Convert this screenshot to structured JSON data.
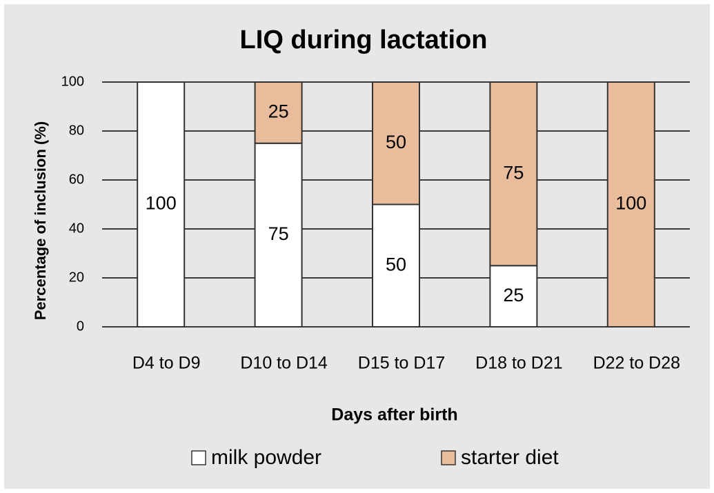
{
  "chart_data": {
    "type": "stacked_bar",
    "title": "LIQ during lactation",
    "x_label": "Days after birth",
    "y_label": "Percentage of inclusion (%)",
    "categories": [
      "D4 to D9",
      "D10 to D14",
      "D15 to D17",
      "D18 to D21",
      "D22 to D28"
    ],
    "series": [
      {
        "name": "milk powder",
        "color": "#ffffff",
        "values": [
          100,
          75,
          50,
          25,
          0
        ]
      },
      {
        "name": "starter diet",
        "color": "#e9bc9c",
        "values": [
          0,
          25,
          50,
          75,
          100
        ]
      }
    ],
    "ylim": [
      0,
      100
    ],
    "yticks": [
      0,
      20,
      40,
      60,
      80,
      100
    ],
    "grid": true,
    "legend": "bottom"
  }
}
